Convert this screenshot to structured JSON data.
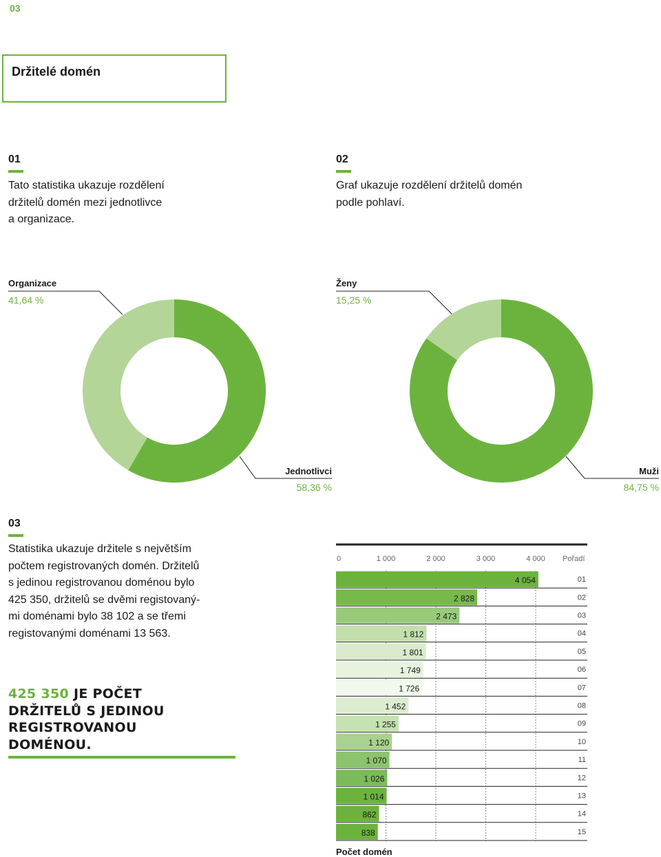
{
  "page_number": "03",
  "title": "Držitelé domén",
  "section1": {
    "number": "01",
    "text_lines": [
      "Tato statistika ukazuje rozdělení",
      "držitelů domén mezi jednotlivce",
      "a organizace."
    ]
  },
  "section2": {
    "number": "02",
    "text_lines": [
      "Graf ukazuje rozdělení držitelů domén",
      "podle pohlaví."
    ]
  },
  "section3": {
    "number": "03",
    "text_lines": [
      "Statistika ukazuje držitele s největším",
      "počtem registrovaných domén. Držitelů",
      "s jedinou registrovanou doménou bylo",
      "425 350, držitelů se dvěmi registovaný-",
      "mi doménami bylo 38 102 a se třemi",
      "registovanými doménami 13 563."
    ]
  },
  "highlight": {
    "number": "425 350",
    "line1_rest": " JE POČET",
    "line2": "DRŽITELŮ S JEDINOU",
    "line3": "REGISTROVANOU",
    "line4": "DOMÉNOU."
  },
  "colors": {
    "accent": "#6cb33e",
    "light": "#b3d598"
  },
  "chart_data": [
    {
      "type": "pie",
      "variant": "donut",
      "slices": [
        {
          "label": "Organizace",
          "value": 41.64,
          "display": "41,64 %",
          "color": "#b3d598"
        },
        {
          "label": "Jednotlivci",
          "value": 58.36,
          "display": "58,36 %",
          "color": "#6cb33e"
        }
      ]
    },
    {
      "type": "pie",
      "variant": "donut",
      "slices": [
        {
          "label": "Ženy",
          "value": 15.25,
          "display": "15,25 %",
          "color": "#b3d598"
        },
        {
          "label": "Muži",
          "value": 84.75,
          "display": "84,75 %",
          "color": "#6cb33e"
        }
      ]
    },
    {
      "type": "bar",
      "orientation": "horizontal",
      "xlabel": "Počet domén",
      "rank_header": "Pořadí",
      "xlim": [
        0,
        5000
      ],
      "xticks": [
        0,
        1000,
        2000,
        3000,
        4000
      ],
      "xtick_labels": [
        "0",
        "1 000",
        "2 000",
        "3 000",
        "4 000"
      ],
      "categories": [
        "01",
        "02",
        "03",
        "04",
        "05",
        "06",
        "07",
        "08",
        "09",
        "10",
        "11",
        "12",
        "13",
        "14",
        "15"
      ],
      "values": [
        4054,
        2828,
        2473,
        1812,
        1801,
        1749,
        1726,
        1452,
        1255,
        1120,
        1070,
        1026,
        1014,
        862,
        838
      ],
      "value_labels": [
        "4 054",
        "2 828",
        "2 473",
        "1 812",
        "1 801",
        "1 749",
        "1 726",
        "1 452",
        "1 255",
        "1 120",
        "1 070",
        "1 026",
        "1 014",
        "862",
        "838"
      ],
      "colors": [
        "#6cb33e",
        "#78b94c",
        "#99ca7a",
        "#c2dfac",
        "#d9ebcb",
        "#e8f3df",
        "#f1f8ec",
        "#ddedd1",
        "#c6e1b2",
        "#a9d18f",
        "#8cc36d",
        "#7abc57",
        "#6cb33e",
        "#6cb33e",
        "#6cb33e"
      ]
    }
  ]
}
